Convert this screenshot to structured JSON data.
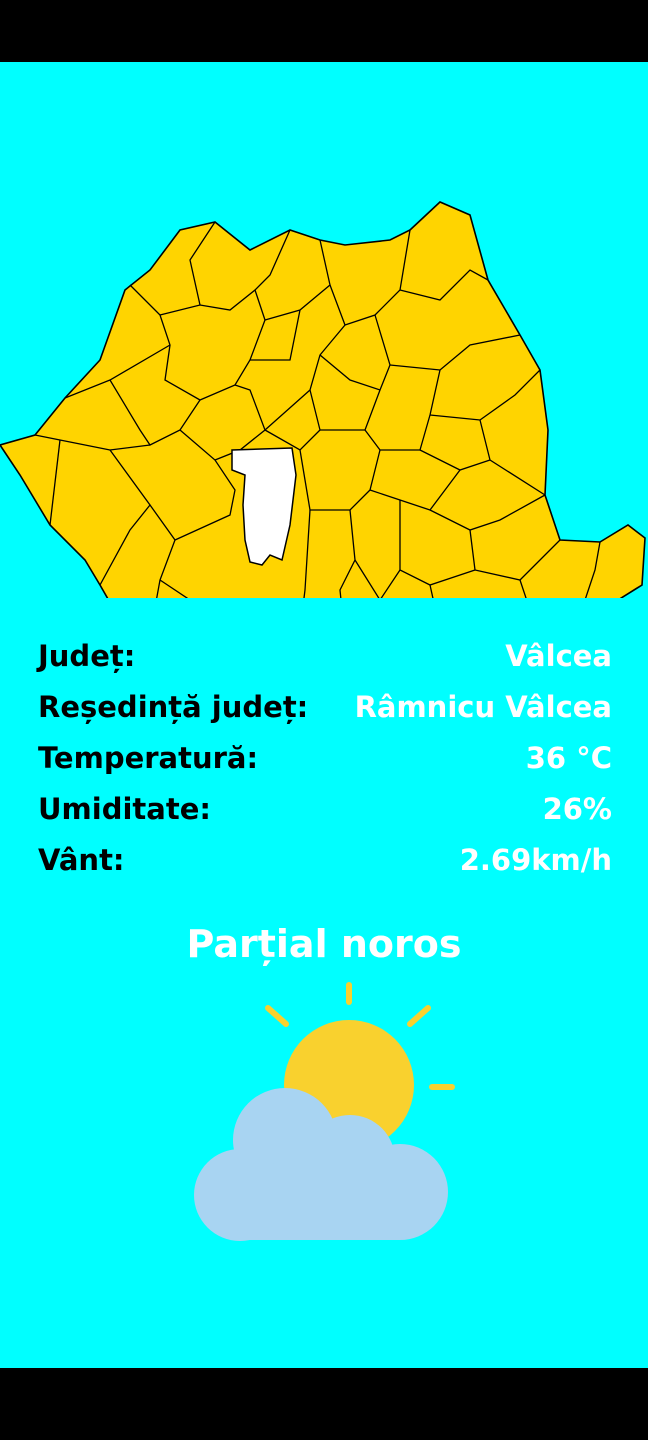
{
  "info": {
    "county_label": "Județ:",
    "county_value": "Vâlcea",
    "seat_label": "Reședință județ:",
    "seat_value": "Râmnicu Vâlcea",
    "temp_label": "Temperatură:",
    "temp_value": "36 °C",
    "humidity_label": "Umiditate:",
    "humidity_value": "26%",
    "wind_label": "Vânt:",
    "wind_value": "2.69km/h"
  },
  "condition": "Parțial noros",
  "icons": {
    "map": "romania-county-map",
    "weather": "partly-cloudy-icon"
  },
  "colors": {
    "background": "#00FFFF",
    "county_fill": "#FFD400",
    "selected_county": "#FFFFFF",
    "sun": "#F9D12E",
    "cloud": "#A8D4F2"
  }
}
